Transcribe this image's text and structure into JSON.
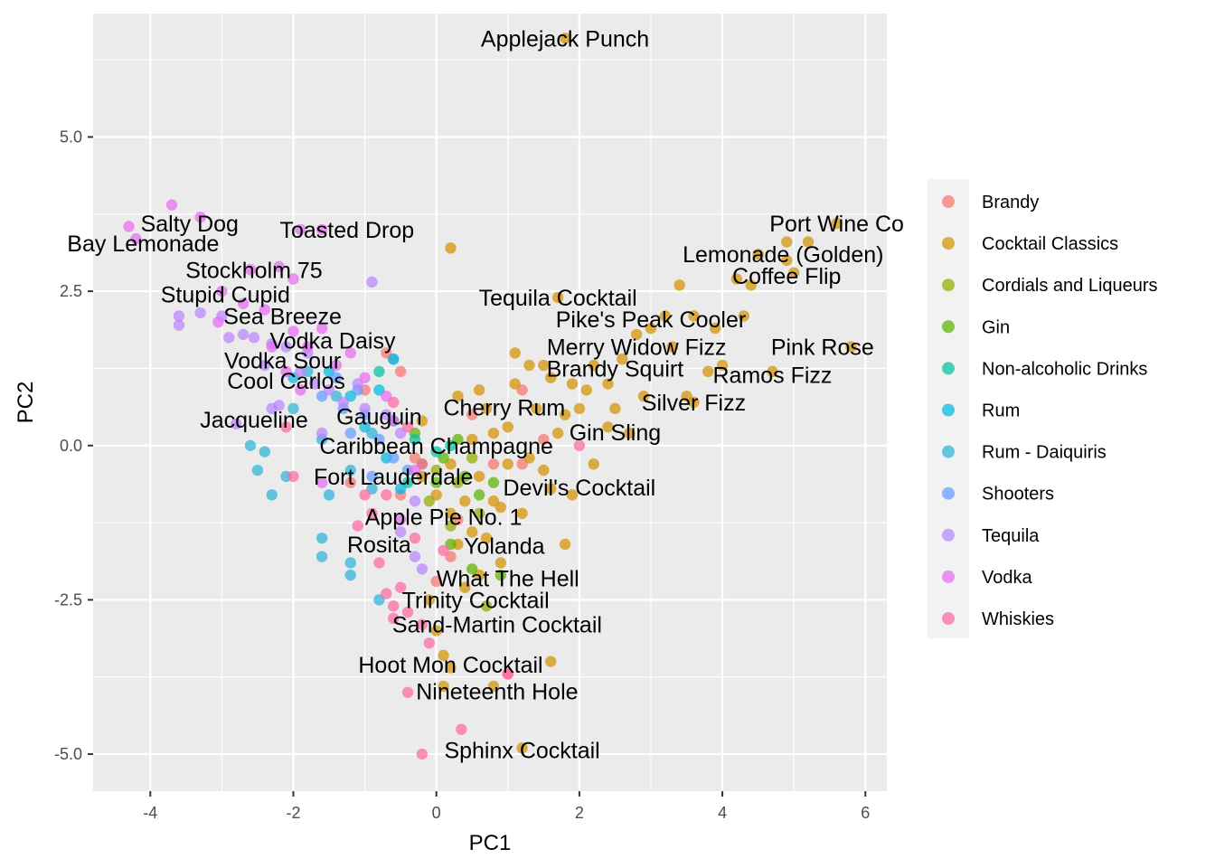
{
  "chart_data": {
    "type": "scatter",
    "xlabel": "PC1",
    "ylabel": "PC2",
    "xlim": [
      -4.8,
      6.3
    ],
    "ylim": [
      -5.6,
      7.0
    ],
    "x_ticks": [
      -4,
      -2,
      0,
      2,
      4,
      6
    ],
    "x_tick_labels": [
      "-4",
      "-2",
      "0",
      "2",
      "4",
      "6"
    ],
    "y_ticks": [
      -5,
      -2.5,
      0,
      2.5,
      5
    ],
    "y_tick_labels": [
      "-5.0",
      "-2.5",
      "0.0",
      "2.5",
      "5.0"
    ],
    "grid": true,
    "legend_position": "right",
    "series": [
      {
        "name": "Brandy",
        "color": "#F8766D",
        "points": [
          [
            -0.7,
            1.5
          ],
          [
            -0.5,
            1.2
          ],
          [
            -1.0,
            0.9
          ],
          [
            0.5,
            0.5
          ],
          [
            0.8,
            -0.3
          ],
          [
            1.2,
            0.9
          ],
          [
            1.2,
            -0.3
          ],
          [
            0.3,
            -1.2
          ],
          [
            1.0,
            -3.7
          ],
          [
            -0.5,
            -0.8
          ],
          [
            -1.2,
            -0.6
          ],
          [
            0.2,
            -1.8
          ],
          [
            0.0,
            -2.2
          ],
          [
            1.5,
            0.1
          ],
          [
            -0.3,
            -0.2
          ]
        ]
      },
      {
        "name": "Cocktail Classics",
        "color": "#D39200",
        "points": [
          [
            1.8,
            6.6
          ],
          [
            0.2,
            3.2
          ],
          [
            1.7,
            2.4
          ],
          [
            5.6,
            3.6
          ],
          [
            4.9,
            3.3
          ],
          [
            5.2,
            3.3
          ],
          [
            4.5,
            3.1
          ],
          [
            4.9,
            3.0
          ],
          [
            5.0,
            2.8
          ],
          [
            4.2,
            2.7
          ],
          [
            4.4,
            2.6
          ],
          [
            5.8,
            1.6
          ],
          [
            4.7,
            1.2
          ],
          [
            4.0,
            1.3
          ],
          [
            3.8,
            1.2
          ],
          [
            3.5,
            0.8
          ],
          [
            3.6,
            0.7
          ],
          [
            3.4,
            2.6
          ],
          [
            3.6,
            2.1
          ],
          [
            3.9,
            1.9
          ],
          [
            4.3,
            2.1
          ],
          [
            3.2,
            2.1
          ],
          [
            3.0,
            1.9
          ],
          [
            2.8,
            1.8
          ],
          [
            2.6,
            1.4
          ],
          [
            3.3,
            1.6
          ],
          [
            2.4,
            1.0
          ],
          [
            2.1,
            0.9
          ],
          [
            1.9,
            1.0
          ],
          [
            1.6,
            1.1
          ],
          [
            1.3,
            1.3
          ],
          [
            1.1,
            1.0
          ],
          [
            1.5,
            1.3
          ],
          [
            2.2,
            1.3
          ],
          [
            1.8,
            0.5
          ],
          [
            2.0,
            0.6
          ],
          [
            2.4,
            0.3
          ],
          [
            2.7,
            0.2
          ],
          [
            2.2,
            -0.3
          ],
          [
            1.9,
            -0.8
          ],
          [
            1.8,
            -1.6
          ],
          [
            1.5,
            -0.4
          ],
          [
            1.3,
            -0.2
          ],
          [
            1.0,
            -0.3
          ],
          [
            0.8,
            0.2
          ],
          [
            0.6,
            -0.5
          ],
          [
            0.4,
            -0.9
          ],
          [
            0.2,
            -1.1
          ],
          [
            0.0,
            -0.8
          ],
          [
            -0.2,
            -0.5
          ],
          [
            0.5,
            -1.4
          ],
          [
            0.3,
            -1.6
          ],
          [
            0.7,
            -1.5
          ],
          [
            0.9,
            -1.9
          ],
          [
            0.6,
            -2.1
          ],
          [
            -0.1,
            -2.5
          ],
          [
            0.0,
            -3.0
          ],
          [
            0.1,
            -3.4
          ],
          [
            0.2,
            -3.6
          ],
          [
            1.6,
            -3.5
          ],
          [
            0.8,
            -3.9
          ],
          [
            0.1,
            -3.9
          ],
          [
            1.2,
            -4.9
          ],
          [
            0.4,
            -2.3
          ],
          [
            0.7,
            0.6
          ],
          [
            1.0,
            0.3
          ],
          [
            1.4,
            0.6
          ],
          [
            1.7,
            0.2
          ],
          [
            0.5,
            0.1
          ],
          [
            0.2,
            -0.3
          ],
          [
            -0.2,
            0.4
          ],
          [
            0.6,
            0.9
          ],
          [
            1.1,
            1.5
          ],
          [
            2.5,
            0.6
          ],
          [
            2.9,
            0.8
          ],
          [
            1.2,
            -1.1
          ],
          [
            1.6,
            -0.7
          ],
          [
            0.9,
            -1.0
          ],
          [
            0.3,
            0.8
          ],
          [
            0.8,
            -0.9
          ]
        ]
      },
      {
        "name": "Cordials and Liqueurs",
        "color": "#93AA00",
        "points": [
          [
            0.3,
            -0.6
          ],
          [
            0.0,
            -0.4
          ],
          [
            0.5,
            -0.2
          ],
          [
            -0.1,
            -0.9
          ],
          [
            0.7,
            -2.6
          ],
          [
            0.2,
            -1.3
          ],
          [
            0.6,
            -1.1
          ]
        ]
      },
      {
        "name": "Gin",
        "color": "#5BB300",
        "points": [
          [
            0.1,
            -0.2
          ],
          [
            0.3,
            0.1
          ],
          [
            -0.2,
            -0.3
          ],
          [
            0.4,
            -0.5
          ],
          [
            0.6,
            -0.8
          ],
          [
            0.2,
            -1.6
          ],
          [
            0.5,
            -2.0
          ],
          [
            0.0,
            -0.6
          ],
          [
            0.8,
            -0.6
          ],
          [
            -0.3,
            0.2
          ],
          [
            0.9,
            -2.1
          ]
        ]
      },
      {
        "name": "Non-alcoholic Drinks",
        "color": "#00C19F",
        "points": [
          [
            -0.8,
            1.2
          ],
          [
            -0.3,
            0.1
          ],
          [
            0.0,
            -0.1
          ],
          [
            -0.4,
            -0.6
          ],
          [
            0.2,
            0.0
          ],
          [
            -0.6,
            0.4
          ]
        ]
      },
      {
        "name": "Rum",
        "color": "#00B9E3",
        "points": [
          [
            -2.0,
            1.1
          ],
          [
            -1.5,
            1.2
          ],
          [
            -1.2,
            0.8
          ],
          [
            -0.8,
            0.9
          ],
          [
            -0.6,
            1.4
          ],
          [
            -1.0,
            0.3
          ],
          [
            -0.7,
            -0.2
          ],
          [
            -0.5,
            -0.7
          ]
        ]
      },
      {
        "name": "Rum - Daiquiris",
        "color": "#2FB3D6",
        "points": [
          [
            -2.6,
            0.0
          ],
          [
            -2.5,
            -0.4
          ],
          [
            -2.4,
            -0.1
          ],
          [
            -2.3,
            -0.8
          ],
          [
            -2.1,
            -0.5
          ],
          [
            -2.0,
            0.6
          ],
          [
            -1.6,
            0.1
          ],
          [
            -1.6,
            -1.5
          ],
          [
            -1.6,
            -1.8
          ],
          [
            -1.2,
            -1.9
          ],
          [
            -1.2,
            -2.1
          ],
          [
            -1.5,
            -0.8
          ],
          [
            -1.2,
            -0.4
          ],
          [
            -0.9,
            -0.7
          ],
          [
            -0.8,
            -2.5
          ],
          [
            -1.8,
            1.2
          ],
          [
            -1.4,
            0.8
          ],
          [
            -0.6,
            1.4
          ],
          [
            -0.9,
            0.2
          ]
        ]
      },
      {
        "name": "Shooters",
        "color": "#619CFF",
        "points": [
          [
            -1.6,
            0.8
          ],
          [
            -1.3,
            0.6
          ],
          [
            -1.0,
            0.5
          ],
          [
            -0.8,
            0.1
          ],
          [
            -1.1,
            0.9
          ],
          [
            -1.4,
            1.1
          ],
          [
            -0.6,
            -0.2
          ],
          [
            -0.4,
            -0.4
          ],
          [
            -1.2,
            0.2
          ],
          [
            -0.9,
            -0.5
          ]
        ]
      },
      {
        "name": "Tequila",
        "color": "#B983FF",
        "points": [
          [
            -3.6,
            2.1
          ],
          [
            -3.6,
            1.95
          ],
          [
            -3.3,
            2.15
          ],
          [
            -3.0,
            2.1
          ],
          [
            -2.9,
            1.75
          ],
          [
            -2.7,
            1.8
          ],
          [
            -2.55,
            1.75
          ],
          [
            -2.3,
            1.65
          ],
          [
            -2.4,
            1.3
          ],
          [
            -2.2,
            0.65
          ],
          [
            -2.3,
            0.6
          ],
          [
            -2.8,
            0.35
          ],
          [
            -1.9,
            1.2
          ],
          [
            -1.7,
            1.0
          ],
          [
            -1.5,
            0.9
          ],
          [
            -1.3,
            0.7
          ],
          [
            -1.1,
            1.0
          ],
          [
            -1.0,
            0.6
          ],
          [
            -0.9,
            2.65
          ],
          [
            -0.7,
            0.5
          ],
          [
            -0.5,
            0.2
          ],
          [
            -0.3,
            -0.9
          ],
          [
            -0.3,
            -1.8
          ],
          [
            -0.2,
            -2.0
          ],
          [
            -0.5,
            -1.4
          ],
          [
            -2.1,
            1.6
          ],
          [
            -1.8,
            1.5
          ],
          [
            -1.6,
            0.2
          ]
        ]
      },
      {
        "name": "Vodka",
        "color": "#E76BF3",
        "points": [
          [
            -4.3,
            3.55
          ],
          [
            -4.2,
            3.35
          ],
          [
            -3.7,
            3.9
          ],
          [
            -3.3,
            3.7
          ],
          [
            -3.0,
            2.5
          ],
          [
            -3.05,
            2.0
          ],
          [
            -2.6,
            2.85
          ],
          [
            -2.2,
            2.9
          ],
          [
            -2.0,
            2.7
          ],
          [
            -1.9,
            3.5
          ],
          [
            -1.6,
            3.5
          ],
          [
            -2.4,
            2.2
          ],
          [
            -2.7,
            2.3
          ],
          [
            -2.3,
            1.6
          ],
          [
            -2.0,
            1.85
          ],
          [
            -1.8,
            1.6
          ],
          [
            -1.6,
            1.9
          ],
          [
            -1.4,
            1.3
          ],
          [
            -1.2,
            1.5
          ],
          [
            -1.0,
            1.1
          ],
          [
            -0.7,
            0.8
          ],
          [
            -0.6,
            0.4
          ],
          [
            -2.1,
            1.2
          ],
          [
            -1.9,
            0.9
          ],
          [
            -1.6,
            -0.6
          ],
          [
            -0.3,
            -0.4
          ],
          [
            -0.5,
            -1.2
          ]
        ]
      },
      {
        "name": "Whiskies",
        "color": "#FF67A4",
        "points": [
          [
            -2.0,
            -0.5
          ],
          [
            -0.6,
            0.7
          ],
          [
            -0.4,
            0.3
          ],
          [
            -0.2,
            -0.3
          ],
          [
            -0.7,
            -0.8
          ],
          [
            -1.0,
            -0.8
          ],
          [
            -0.8,
            -1.9
          ],
          [
            -0.7,
            -2.4
          ],
          [
            -0.6,
            -2.6
          ],
          [
            -0.6,
            -2.8
          ],
          [
            -0.4,
            -2.7
          ],
          [
            -0.5,
            -2.3
          ],
          [
            -0.2,
            -2.9
          ],
          [
            -0.1,
            -3.2
          ],
          [
            -0.4,
            -4.0
          ],
          [
            0.35,
            -4.6
          ],
          [
            -0.2,
            -5.0
          ],
          [
            1.0,
            -3.7
          ],
          [
            -0.3,
            -1.5
          ],
          [
            -0.9,
            -1.1
          ],
          [
            -1.1,
            -1.3
          ],
          [
            0.1,
            -1.7
          ],
          [
            2.0,
            0.0
          ],
          [
            -2.1,
            0.3
          ]
        ]
      }
    ],
    "annotations": [
      {
        "text": "Applejack Punch",
        "x": 1.8,
        "y": 6.6
      },
      {
        "text": "Salty Dog",
        "x": -3.45,
        "y": 3.6
      },
      {
        "text": "Bay Lemonade",
        "x": -4.1,
        "y": 3.28
      },
      {
        "text": "Toasted Drop",
        "x": -1.25,
        "y": 3.5
      },
      {
        "text": "Port Wine Co",
        "x": 5.6,
        "y": 3.6
      },
      {
        "text": "Lemonade (Golden)",
        "x": 4.85,
        "y": 3.1
      },
      {
        "text": "Coffee Flip",
        "x": 4.9,
        "y": 2.75
      },
      {
        "text": "Stockholm 75",
        "x": -2.55,
        "y": 2.85
      },
      {
        "text": "Stupid Cupid",
        "x": -2.95,
        "y": 2.45
      },
      {
        "text": "Tequila Cocktail",
        "x": 1.7,
        "y": 2.4
      },
      {
        "text": "Sea Breeze",
        "x": -2.15,
        "y": 2.1
      },
      {
        "text": "Pike's Peak Cooler",
        "x": 3.0,
        "y": 2.05
      },
      {
        "text": "Vodka Daisy",
        "x": -1.45,
        "y": 1.7
      },
      {
        "text": "Merry Widow Fizz",
        "x": 2.8,
        "y": 1.6
      },
      {
        "text": "Pink Rose",
        "x": 5.4,
        "y": 1.6
      },
      {
        "text": "Vodka Sour",
        "x": -2.15,
        "y": 1.38
      },
      {
        "text": "Brandy Squirt",
        "x": 2.5,
        "y": 1.25
      },
      {
        "text": "Ramos Fizz",
        "x": 4.7,
        "y": 1.15
      },
      {
        "text": "Cool Carlos",
        "x": -2.1,
        "y": 1.05
      },
      {
        "text": "Silver Fizz",
        "x": 3.6,
        "y": 0.7
      },
      {
        "text": "Cherry Rum",
        "x": 0.95,
        "y": 0.62
      },
      {
        "text": "Jacqueline",
        "x": -2.55,
        "y": 0.42
      },
      {
        "text": "Gauguin",
        "x": -0.8,
        "y": 0.47
      },
      {
        "text": "Gin Sling",
        "x": 2.5,
        "y": 0.22
      },
      {
        "text": "Caribbean Champagne",
        "x": 0.0,
        "y": 0.0
      },
      {
        "text": "Fort Lauderdale",
        "x": -0.6,
        "y": -0.5
      },
      {
        "text": "Devil's Cocktail",
        "x": 2.0,
        "y": -0.68
      },
      {
        "text": "Apple Pie No. 1",
        "x": 0.1,
        "y": -1.15
      },
      {
        "text": "Rosita",
        "x": -0.8,
        "y": -1.6
      },
      {
        "text": "Yolanda",
        "x": 0.95,
        "y": -1.62
      },
      {
        "text": "What The Hell",
        "x": 1.0,
        "y": -2.15
      },
      {
        "text": "Trinity Cocktail",
        "x": 0.55,
        "y": -2.5
      },
      {
        "text": "Sand-Martin Cocktail",
        "x": 0.85,
        "y": -2.9
      },
      {
        "text": "Hoot Mon Cocktail",
        "x": 0.2,
        "y": -3.55
      },
      {
        "text": "Nineteenth Hole",
        "x": 0.85,
        "y": -3.98
      },
      {
        "text": "Sphinx Cocktail",
        "x": 1.2,
        "y": -4.93
      }
    ]
  }
}
